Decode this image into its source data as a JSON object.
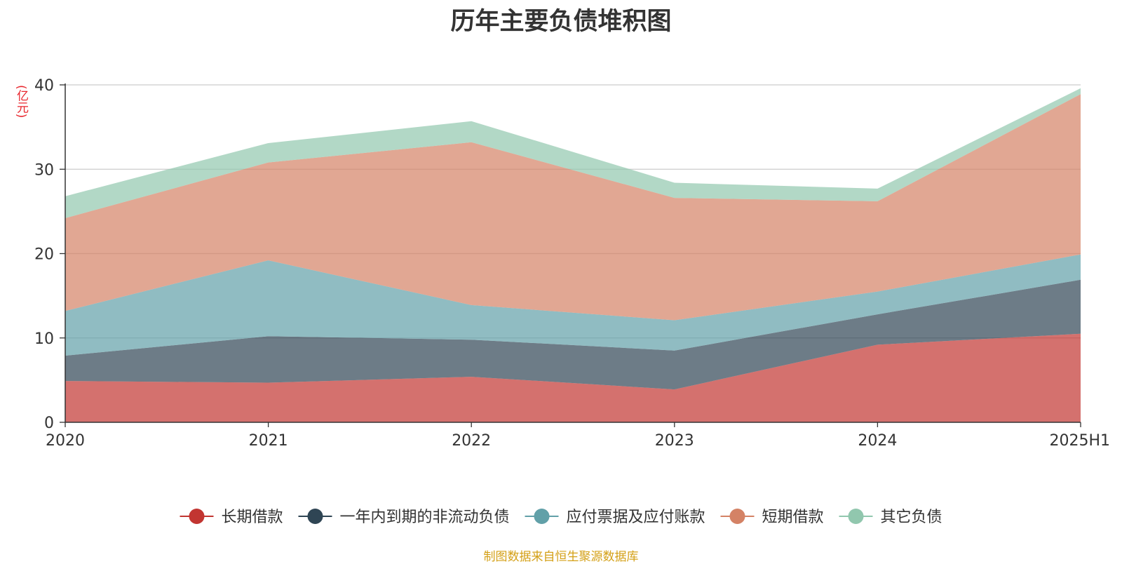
{
  "chart_data": {
    "type": "area",
    "title": "历年主要负债堆积图",
    "unit_label": "(亿元)",
    "x": [
      "2020",
      "2021",
      "2022",
      "2023",
      "2024",
      "2025H1"
    ],
    "ylim": [
      0,
      40
    ],
    "yticks": [
      "0",
      "10",
      "20",
      "30",
      "40"
    ],
    "grid": true,
    "stacked": true,
    "legend_position": "bottom",
    "series": [
      {
        "name": "长期借款",
        "color": "#c23531",
        "values": [
          4.9,
          4.7,
          5.4,
          3.9,
          9.2,
          10.5
        ]
      },
      {
        "name": "一年内到期的非流动负债",
        "color": "#2f4554",
        "values": [
          3.0,
          5.5,
          4.4,
          4.6,
          3.6,
          6.4
        ]
      },
      {
        "name": "应付票据及应付账款",
        "color": "#61a0a8",
        "values": [
          5.3,
          9.0,
          4.1,
          3.6,
          2.7,
          3.0
        ]
      },
      {
        "name": "短期借款",
        "color": "#d48265",
        "values": [
          11.0,
          11.6,
          19.3,
          14.5,
          10.7,
          19.0
        ]
      },
      {
        "name": "其它负债",
        "color": "#91c7ae",
        "values": [
          2.6,
          2.3,
          2.5,
          1.8,
          1.5,
          0.7
        ]
      }
    ]
  },
  "footer": {
    "source": "制图数据来自恒生聚源数据库",
    "color": "#d4a017"
  }
}
